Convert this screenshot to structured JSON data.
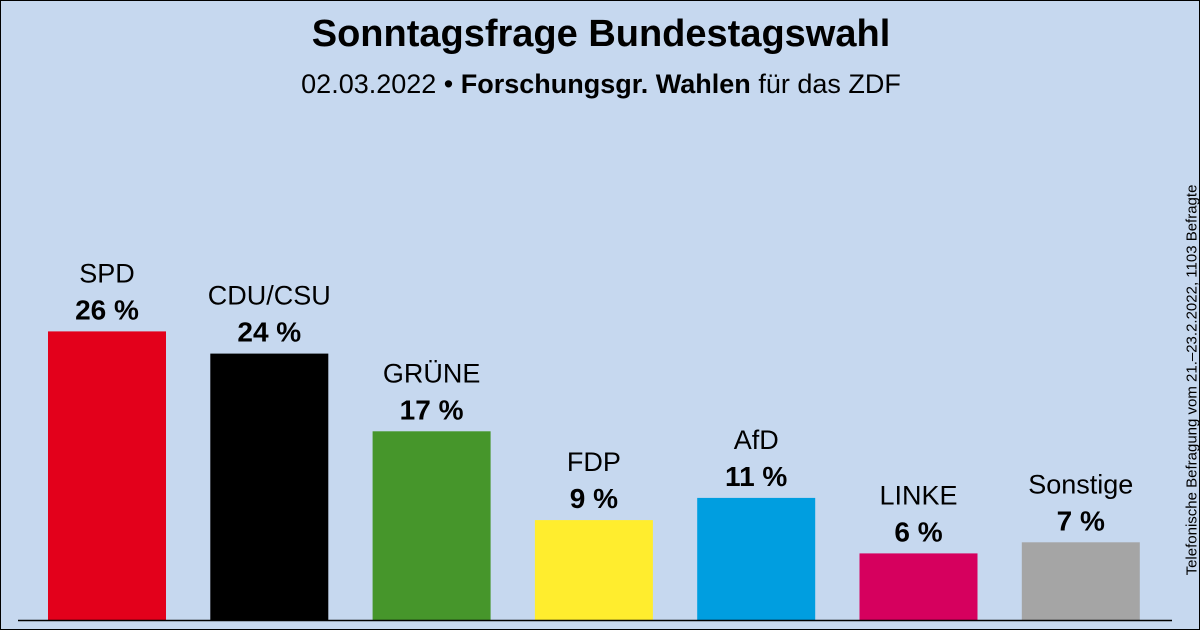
{
  "chart_data": {
    "type": "bar",
    "title": "Sonntagsfrage Bundestagswahl",
    "subtitle_date": "02.03.2022 •",
    "subtitle_institute": "Forschungsgr. Wahlen",
    "subtitle_client": "für das ZDF",
    "side_note": "Telefonische Befragung vom 21.–23.2.2022, 1103 Befragte",
    "categories": [
      "SPD",
      "CDU/CSU",
      "GRÜNE",
      "FDP",
      "AfD",
      "LINKE",
      "Sonstige"
    ],
    "values": [
      26,
      24,
      17,
      9,
      11,
      6,
      7
    ],
    "value_labels": [
      "26 %",
      "24 %",
      "17 %",
      "9 %",
      "11 %",
      "6 %",
      "7 %"
    ],
    "colors": [
      "#e3001b",
      "#000000",
      "#46962b",
      "#ffed2e",
      "#009ee0",
      "#d6005e",
      "#a5a5a5"
    ],
    "grid": false,
    "legend": "none"
  }
}
